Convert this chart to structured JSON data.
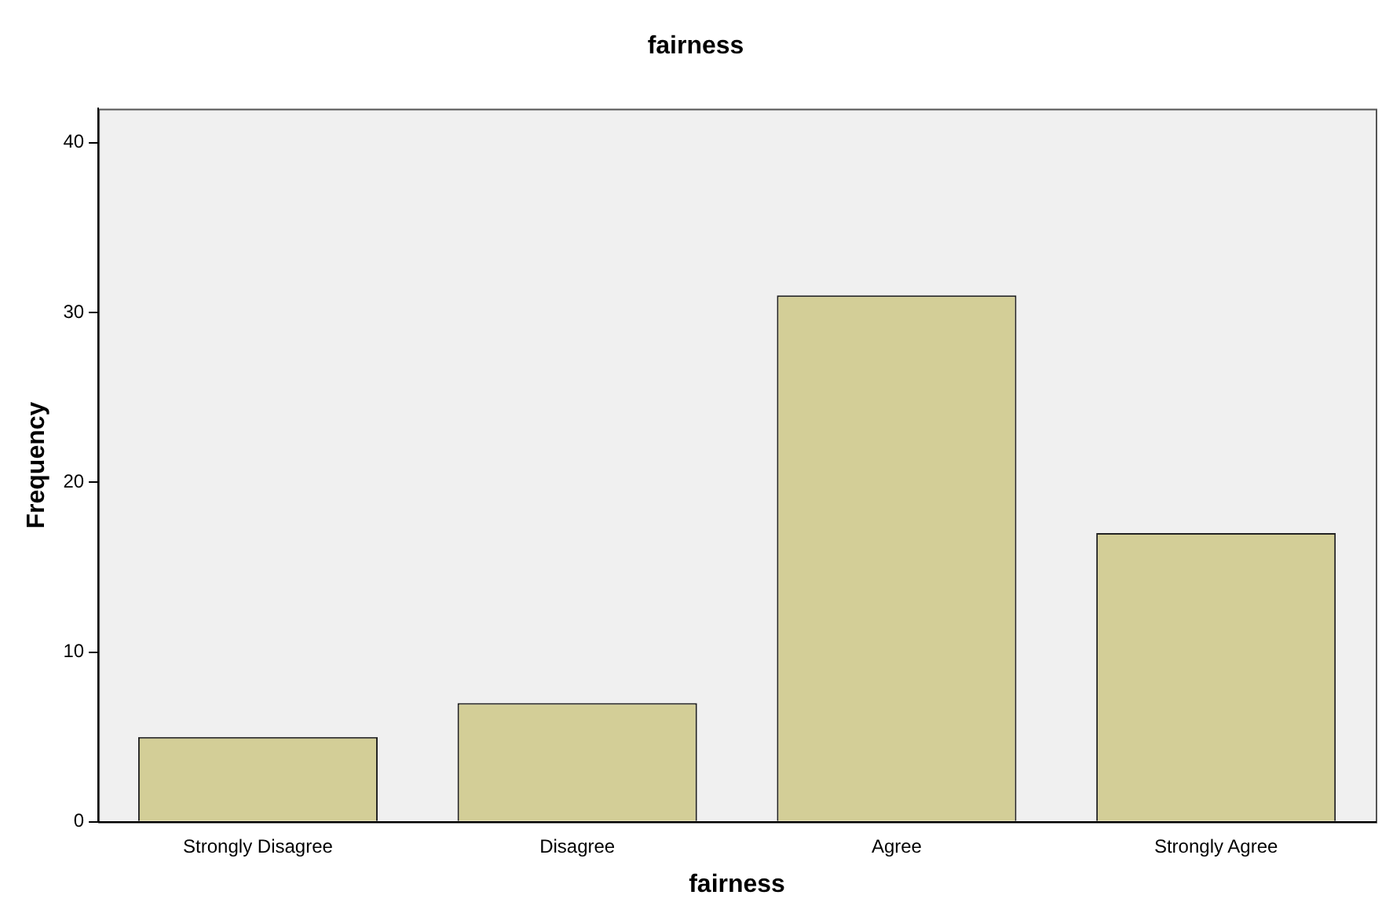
{
  "chart_data": {
    "type": "bar",
    "title": "fairness",
    "xlabel": "fairness",
    "ylabel": "Frequency",
    "categories": [
      "Strongly Disagree",
      "Disagree",
      "Agree",
      "Strongly Agree"
    ],
    "values": [
      5,
      7,
      31,
      17
    ],
    "color": "#d3ce97",
    "ylim": [
      0,
      42
    ],
    "yticks": [
      0,
      10,
      20,
      30,
      40
    ],
    "grid": false,
    "legend": false
  }
}
